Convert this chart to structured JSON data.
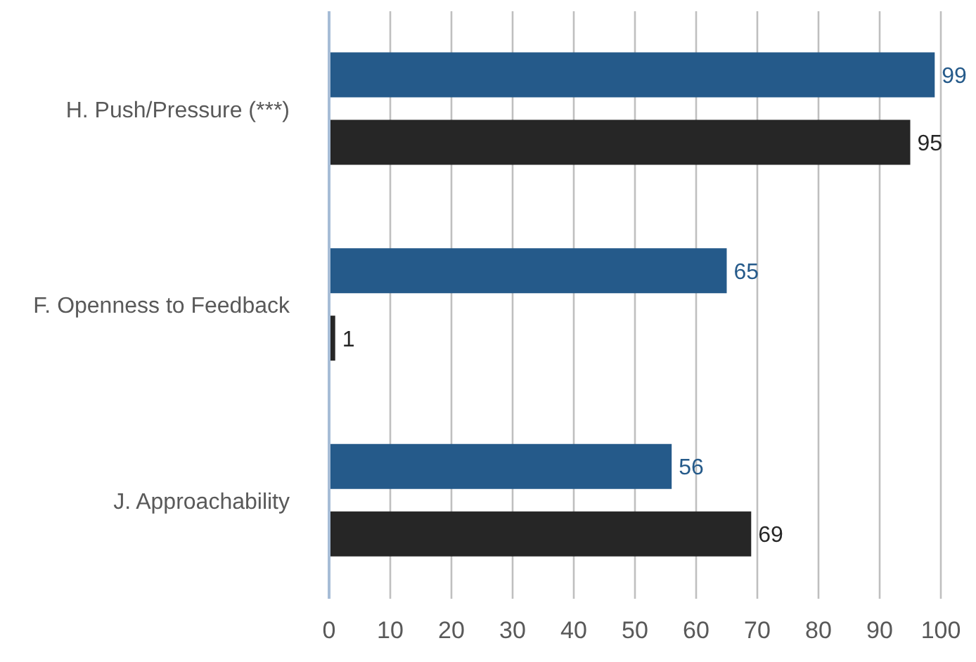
{
  "chart_data": {
    "type": "bar",
    "orientation": "horizontal",
    "categories": [
      "H. Push/Pressure (***)",
      "F. Openness to Feedback",
      "J. Approachability"
    ],
    "series": [
      {
        "color": "#255a8a",
        "values": [
          99,
          65,
          56
        ]
      },
      {
        "color": "#262626",
        "values": [
          95,
          1,
          69
        ]
      }
    ],
    "xlim": [
      0,
      100
    ],
    "xticks": [
      0,
      10,
      20,
      30,
      40,
      50,
      60,
      70,
      80,
      90,
      100
    ],
    "grid": "x",
    "data_labels": true,
    "legend": false
  }
}
